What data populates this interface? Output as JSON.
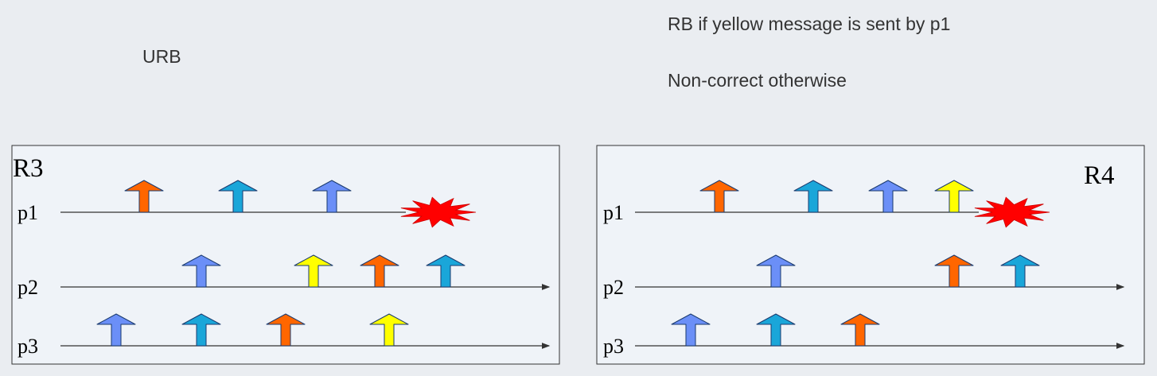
{
  "header": {
    "left_label": "URB",
    "right_line1": "RB if yellow message is sent by p1",
    "right_line2": "Non-correct otherwise"
  },
  "colors": {
    "orange": "#ff6600",
    "cyan": "#1aa6d9",
    "blue": "#6b8ff7",
    "yellow": "#ffff00",
    "crash": "#ff0000",
    "panel_bg": "#eff3f8"
  },
  "panels": [
    {
      "title": "R3",
      "processes": [
        {
          "label": "p1",
          "arrows": [
            "orange",
            "cyan",
            "blue"
          ],
          "crash": true
        },
        {
          "label": "p2",
          "arrows": [
            "blue",
            "yellow",
            "orange",
            "cyan"
          ],
          "crash": false
        },
        {
          "label": "p3",
          "arrows": [
            "blue",
            "cyan",
            "orange",
            "yellow"
          ],
          "crash": false
        }
      ]
    },
    {
      "title": "R4",
      "processes": [
        {
          "label": "p1",
          "arrows": [
            "orange",
            "cyan",
            "blue",
            "yellow"
          ],
          "crash": true
        },
        {
          "label": "p2",
          "arrows": [
            "blue",
            "orange",
            "cyan"
          ],
          "crash": false
        },
        {
          "label": "p3",
          "arrows": [
            "blue",
            "cyan",
            "orange"
          ],
          "crash": false
        }
      ]
    }
  ]
}
